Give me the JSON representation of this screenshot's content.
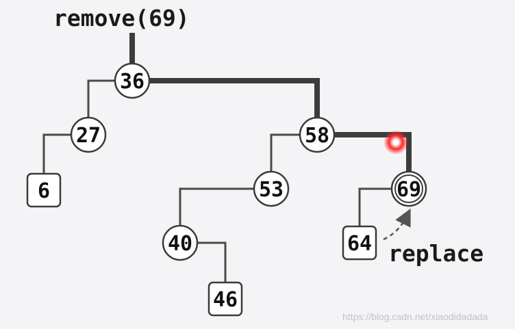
{
  "title": "remove(69)",
  "annotation": "replace",
  "watermark": "https://blog.csdn.net/xiaodidadada",
  "colors": {
    "edge": "#4a4a4a",
    "highlight_path": "#3c3c3c",
    "cursor": "#ff2a2a",
    "background": "#f4f4f6"
  },
  "tree": {
    "root": "36",
    "nodes": [
      {
        "id": "36",
        "kind": "circle",
        "label": "36"
      },
      {
        "id": "27",
        "kind": "circle",
        "label": "27"
      },
      {
        "id": "6",
        "kind": "box",
        "label": "6"
      },
      {
        "id": "58",
        "kind": "circle",
        "label": "58"
      },
      {
        "id": "53",
        "kind": "circle",
        "label": "53"
      },
      {
        "id": "40",
        "kind": "circle",
        "label": "40"
      },
      {
        "id": "46",
        "kind": "box",
        "label": "46"
      },
      {
        "id": "69",
        "kind": "circle",
        "label": "69",
        "target": true
      },
      {
        "id": "64",
        "kind": "box",
        "label": "64"
      }
    ],
    "edges": [
      {
        "parent": "36",
        "child": "27",
        "side": "left"
      },
      {
        "parent": "36",
        "child": "58",
        "side": "right",
        "on_search_path": true
      },
      {
        "parent": "27",
        "child": "6",
        "side": "left"
      },
      {
        "parent": "58",
        "child": "53",
        "side": "left"
      },
      {
        "parent": "58",
        "child": "69",
        "side": "right",
        "on_search_path": true
      },
      {
        "parent": "53",
        "child": "40",
        "side": "left"
      },
      {
        "parent": "40",
        "child": "46",
        "side": "right"
      },
      {
        "parent": "69",
        "child": "64",
        "side": "left"
      }
    ],
    "replacement": {
      "from": "64",
      "to": "69"
    }
  }
}
